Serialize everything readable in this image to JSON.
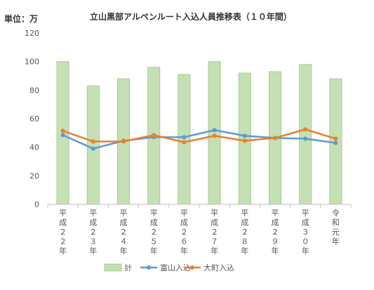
{
  "chart_data": {
    "type": "bar",
    "title": "立山黒部アルペンルート入込人員推移表（１０年間）",
    "unit_label": "単位：万",
    "categories": [
      "平成２２年",
      "平成２３年",
      "平成２４年",
      "平成２５年",
      "平成２６年",
      "平成２７年",
      "平成２８年",
      "平成２９年",
      "平成３０年",
      "令和元年"
    ],
    "ylim": [
      0,
      120
    ],
    "yticks": [
      0,
      20,
      40,
      60,
      80,
      100,
      120
    ],
    "grid": false,
    "legend_position": "bottom",
    "series": [
      {
        "name": "計",
        "type": "bar",
        "color": "#c5e0b4",
        "stroke": "#9dc885",
        "values": [
          100,
          83,
          88,
          96,
          91,
          100,
          92,
          93,
          98,
          88
        ]
      },
      {
        "name": "富山入込",
        "type": "line",
        "color": "#5b9bd5",
        "values": [
          48.5,
          39,
          44.5,
          47,
          47,
          52,
          48,
          46.5,
          46,
          43
        ]
      },
      {
        "name": "大町入込",
        "type": "line",
        "color": "#ed7d31",
        "values": [
          51.5,
          44,
          44,
          48.5,
          43.5,
          48,
          44.5,
          46.5,
          52.5,
          46
        ]
      }
    ]
  }
}
